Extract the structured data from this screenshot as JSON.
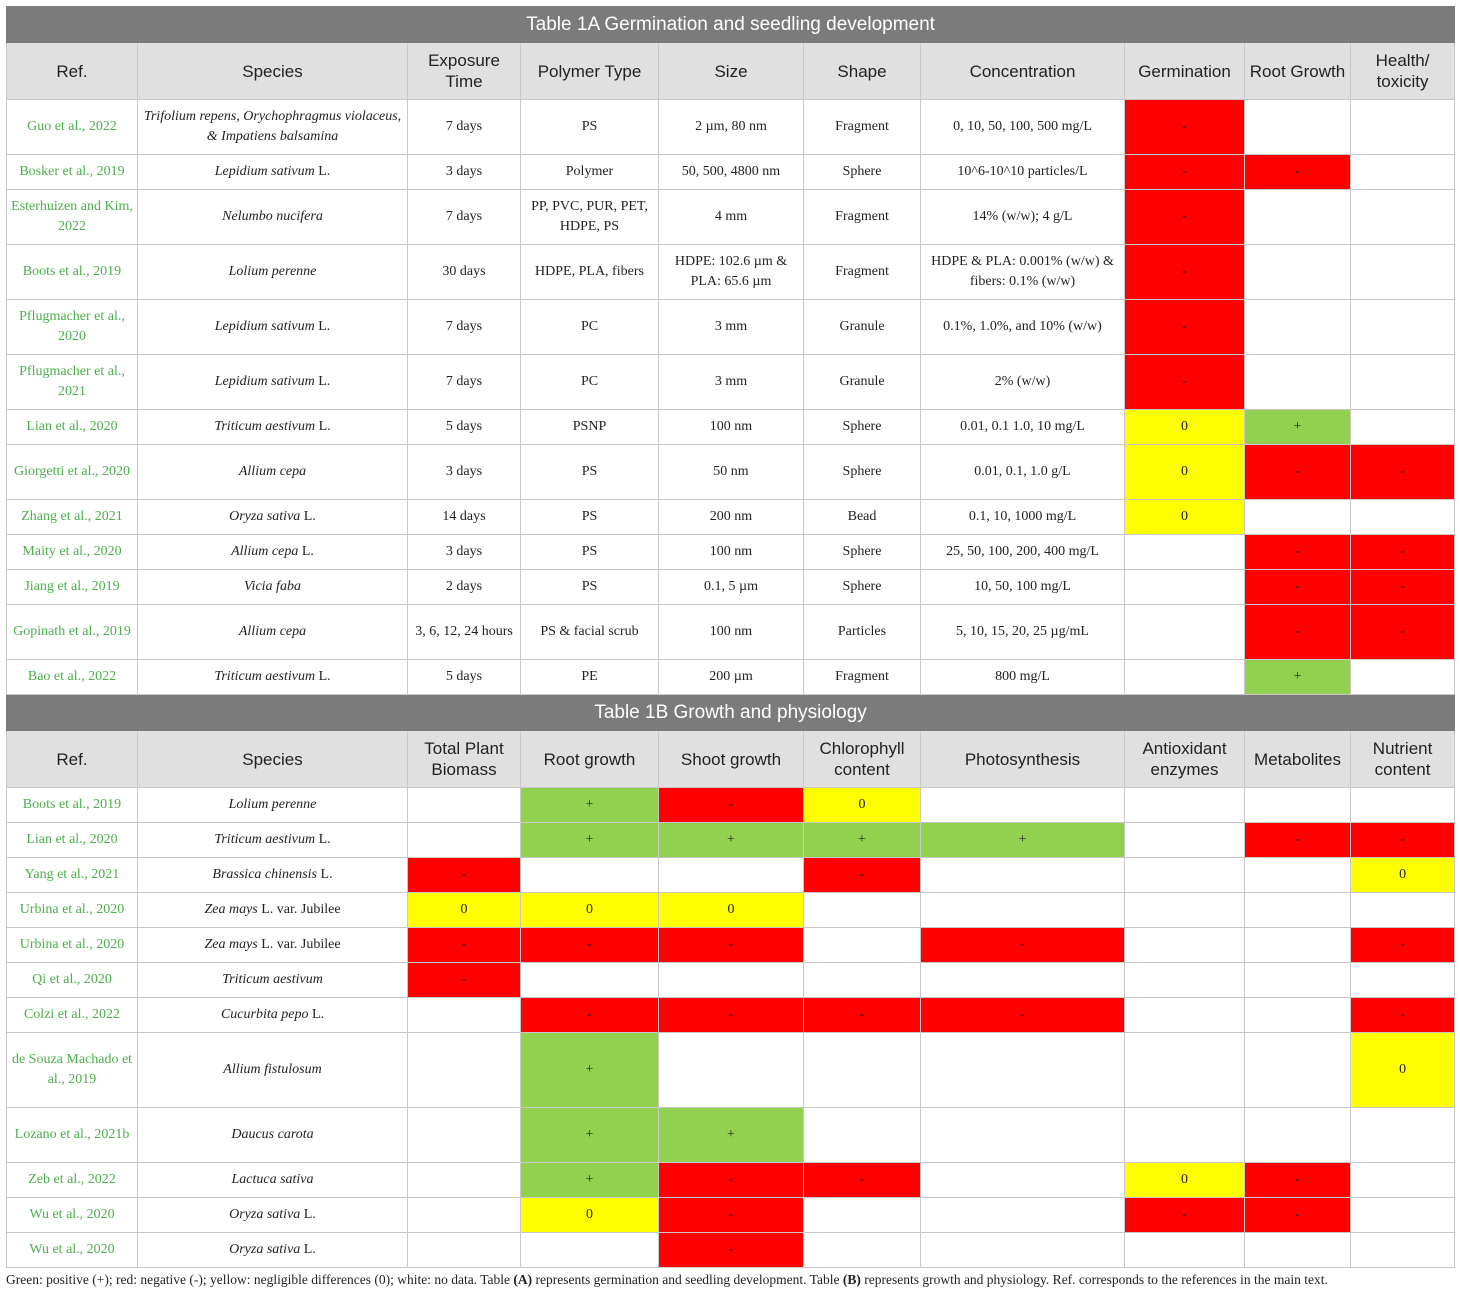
{
  "colors": {
    "positive": "#92d050",
    "negative": "#ff0000",
    "neutral": "#ffff00",
    "header_bar": "#7b7b7b",
    "header_row": "#e0e0e0",
    "ref_text": "#4cae4c"
  },
  "table_a": {
    "title": "Table 1A Germination and seedling development",
    "headers": [
      "Ref.",
      "Species",
      "Exposure Time",
      "Polymer Type",
      "Size",
      "Shape",
      "Concentration",
      "Germination",
      "Root Growth",
      "Health/ toxicity"
    ],
    "rows": [
      {
        "ref": "Guo et al., 2022",
        "species": "Trifolium repens, Orychophragmus violaceus, & Impatiens balsamina",
        "species_suffix": "",
        "time": "7 days",
        "polymer": "PS",
        "size": "2 µm, 80 nm",
        "shape": "Fragment",
        "conc": "0, 10, 50, 100, 500 mg/L",
        "effects": [
          "-",
          "",
          ""
        ]
      },
      {
        "ref": "Bosker et al., 2019",
        "species": "Lepidium sativum",
        "species_suffix": " L.",
        "time": "3 days",
        "polymer": "Polymer",
        "size": "50, 500, 4800 nm",
        "shape": "Sphere",
        "conc": "10^6-10^10 particles/L",
        "effects": [
          "-",
          "-",
          ""
        ]
      },
      {
        "ref": "Esterhuizen and Kim, 2022",
        "species": "Nelumbo nucifera",
        "species_suffix": "",
        "time": "7 days",
        "polymer": "PP, PVC, PUR, PET, HDPE, PS",
        "size": "4 mm",
        "shape": "Fragment",
        "conc": "14% (w/w); 4 g/L",
        "effects": [
          "-",
          "",
          ""
        ]
      },
      {
        "ref": "Boots et al., 2019",
        "species": "Lolium perenne",
        "species_suffix": "",
        "time": "30 days",
        "polymer": "HDPE, PLA, fibers",
        "size": "HDPE: 102.6 µm & PLA: 65.6 µm",
        "shape": "Fragment",
        "conc": "HDPE & PLA: 0.001% (w/w) & fibers: 0.1% (w/w)",
        "effects": [
          "-",
          "",
          ""
        ]
      },
      {
        "ref": "Pflugmacher et al., 2020",
        "species": "Lepidium sativum",
        "species_suffix": " L.",
        "time": "7 days",
        "polymer": "PC",
        "size": "3 mm",
        "shape": "Granule",
        "conc": "0.1%, 1.0%, and 10% (w/w)",
        "effects": [
          "-",
          "",
          ""
        ]
      },
      {
        "ref": "Pflugmacher et al., 2021",
        "species": "Lepidium sativum",
        "species_suffix": " L.",
        "time": "7 days",
        "polymer": "PC",
        "size": "3 mm",
        "shape": "Granule",
        "conc": "2% (w/w)",
        "effects": [
          "-",
          "",
          ""
        ]
      },
      {
        "ref": "Lian et al., 2020",
        "species": "Triticum aestivum",
        "species_suffix": " L.",
        "time": "5 days",
        "polymer": "PSNP",
        "size": "100 nm",
        "shape": "Sphere",
        "conc": "0.01, 0.1 1.0, 10 mg/L",
        "effects": [
          "0",
          "+",
          ""
        ]
      },
      {
        "ref": "Giorgetti et al., 2020",
        "species": "Allium cepa",
        "species_suffix": "",
        "time": "3 days",
        "polymer": "PS",
        "size": "50 nm",
        "shape": "Sphere",
        "conc": "0.01, 0.1, 1.0 g/L",
        "effects": [
          "0",
          "-",
          "-"
        ]
      },
      {
        "ref": "Zhang et al., 2021",
        "species": "Oryza sativa",
        "species_suffix": " L.",
        "time": "14 days",
        "polymer": "PS",
        "size": "200 nm",
        "shape": "Bead",
        "conc": "0.1, 10, 1000 mg/L",
        "effects": [
          "0",
          "",
          ""
        ]
      },
      {
        "ref": "Maity et al., 2020",
        "species": "Allium cepa",
        "species_suffix": " L.",
        "time": "3 days",
        "polymer": "PS",
        "size": "100 nm",
        "shape": "Sphere",
        "conc": "25, 50, 100, 200, 400 mg/L",
        "effects": [
          "",
          "-",
          "-"
        ]
      },
      {
        "ref": "Jiang et al., 2019",
        "species": "Vicia faba",
        "species_suffix": "",
        "time": "2 days",
        "polymer": "PS",
        "size": "0.1, 5 µm",
        "shape": "Sphere",
        "conc": "10, 50, 100 mg/L",
        "effects": [
          "",
          "-",
          "-"
        ]
      },
      {
        "ref": "Gopinath et al., 2019",
        "species": "Allium cepa",
        "species_suffix": "",
        "time": "3, 6, 12, 24 hours",
        "polymer": "PS & facial scrub",
        "size": "100 nm",
        "shape": "Particles",
        "conc": "5, 10, 15, 20, 25 µg/mL",
        "effects": [
          "",
          "-",
          "-"
        ]
      },
      {
        "ref": "Bao et al., 2022",
        "species": "Triticum aestivum",
        "species_suffix": " L.",
        "time": "5 days",
        "polymer": "PE",
        "size": "200 µm",
        "shape": "Fragment",
        "conc": "800 mg/L",
        "effects": [
          "",
          "+",
          ""
        ]
      }
    ]
  },
  "table_b": {
    "title": "Table 1B Growth and physiology",
    "headers": [
      "Ref.",
      "Species",
      "Total Plant Biomass",
      "Root growth",
      "Shoot growth",
      "Chlorophyll content",
      "Photosynthesis",
      "Antioxidant enzymes",
      "Metabolites",
      "Nutrient content"
    ],
    "rows": [
      {
        "ref": "Boots et al., 2019",
        "species": "Lolium perenne",
        "species_suffix": "",
        "effects": [
          "",
          "+",
          "-",
          "0",
          "",
          "",
          "",
          ""
        ]
      },
      {
        "ref": "Lian et al., 2020",
        "species": "Triticum aestivum",
        "species_suffix": " L.",
        "effects": [
          "",
          "+",
          "+",
          "+",
          "+",
          "",
          "-",
          "-"
        ]
      },
      {
        "ref": "Yang et al., 2021",
        "species": "Brassica chinensis",
        "species_suffix": " L.",
        "effects": [
          "-",
          "",
          "",
          "-",
          "",
          "",
          "",
          "0"
        ]
      },
      {
        "ref": "Urbina et al., 2020",
        "species": "Zea mays",
        "species_suffix": " L. var. Jubilee",
        "effects": [
          "0",
          "0",
          "0",
          "",
          "",
          "",
          "",
          ""
        ]
      },
      {
        "ref": "Urbina et al., 2020",
        "species": "Zea mays",
        "species_suffix": " L. var. Jubilee",
        "effects": [
          "-",
          "-",
          "-",
          "",
          "-",
          "",
          "",
          "-"
        ]
      },
      {
        "ref": "Qi et al., 2020",
        "species": "Triticum aestivum",
        "species_suffix": "",
        "effects": [
          "-",
          "",
          "",
          "",
          "",
          "",
          "",
          ""
        ]
      },
      {
        "ref": "Colzi et al., 2022",
        "species": "Cucurbita pepo",
        "species_suffix": " L.",
        "effects": [
          "",
          "-",
          "-",
          "-",
          "-",
          "",
          "",
          "-"
        ]
      },
      {
        "ref": "de Souza Machado et al., 2019",
        "species": "Allium fistulosum",
        "species_suffix": "",
        "effects": [
          "",
          "+",
          "",
          "",
          "",
          "",
          "",
          "0"
        ]
      },
      {
        "ref": "Lozano et al., 2021b",
        "species": "Daucus carota",
        "species_suffix": "",
        "effects": [
          "",
          "+",
          "+",
          "",
          "",
          "",
          "",
          ""
        ]
      },
      {
        "ref": "Zeb et al., 2022",
        "species": "Lactuca sativa",
        "species_suffix": "",
        "effects": [
          "",
          "+",
          "-",
          "-",
          "",
          "0",
          "-",
          ""
        ]
      },
      {
        "ref": "Wu et al., 2020",
        "species": "Oryza sativa",
        "species_suffix": " L.",
        "effects": [
          "",
          "0",
          "-",
          "",
          "",
          "-",
          "-",
          ""
        ]
      },
      {
        "ref": "Wu et al., 2020",
        "species": "Oryza sativa",
        "species_suffix": " L.",
        "effects": [
          "",
          "",
          "-",
          "",
          "",
          "",
          "",
          ""
        ]
      }
    ]
  },
  "footnote": {
    "part1": "Green: positive (+); red: negative (-); yellow: negligible differences (0); white: no data. Table ",
    "a": "(A)",
    "part2": " represents germination and seedling development. Table ",
    "b": "(B)",
    "part3": " represents growth and physiology. Ref. corresponds to the references in the main text."
  }
}
